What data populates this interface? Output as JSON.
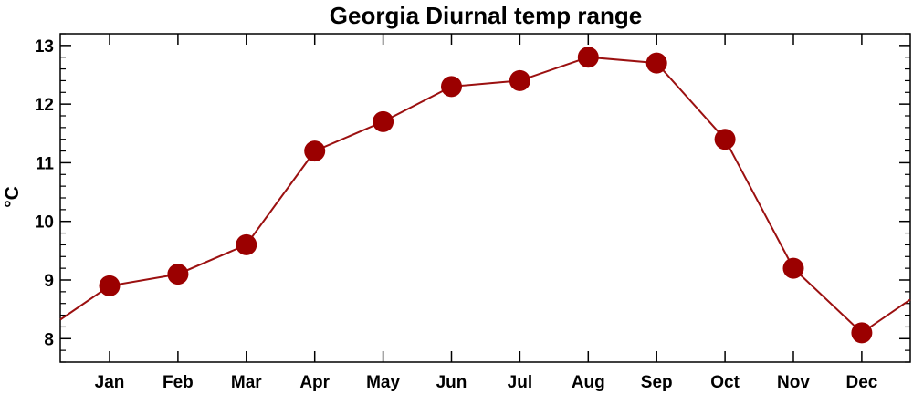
{
  "chart_data": {
    "type": "line",
    "title": "Georgia Diurnal temp range",
    "xlabel": "",
    "ylabel": "°C",
    "categories": [
      "Jan",
      "Feb",
      "Mar",
      "Apr",
      "May",
      "Jun",
      "Jul",
      "Aug",
      "Sep",
      "Oct",
      "Nov",
      "Dec"
    ],
    "values": [
      8.9,
      9.1,
      9.6,
      11.2,
      11.7,
      12.3,
      12.4,
      12.8,
      12.7,
      11.4,
      9.2,
      8.1
    ],
    "ylim": [
      7.6,
      13.2
    ],
    "yticks": [
      8,
      9,
      10,
      11,
      12,
      13
    ],
    "grid": false,
    "cyclic": true,
    "line_color": "#9b1010",
    "marker_color": "#9b0000"
  }
}
